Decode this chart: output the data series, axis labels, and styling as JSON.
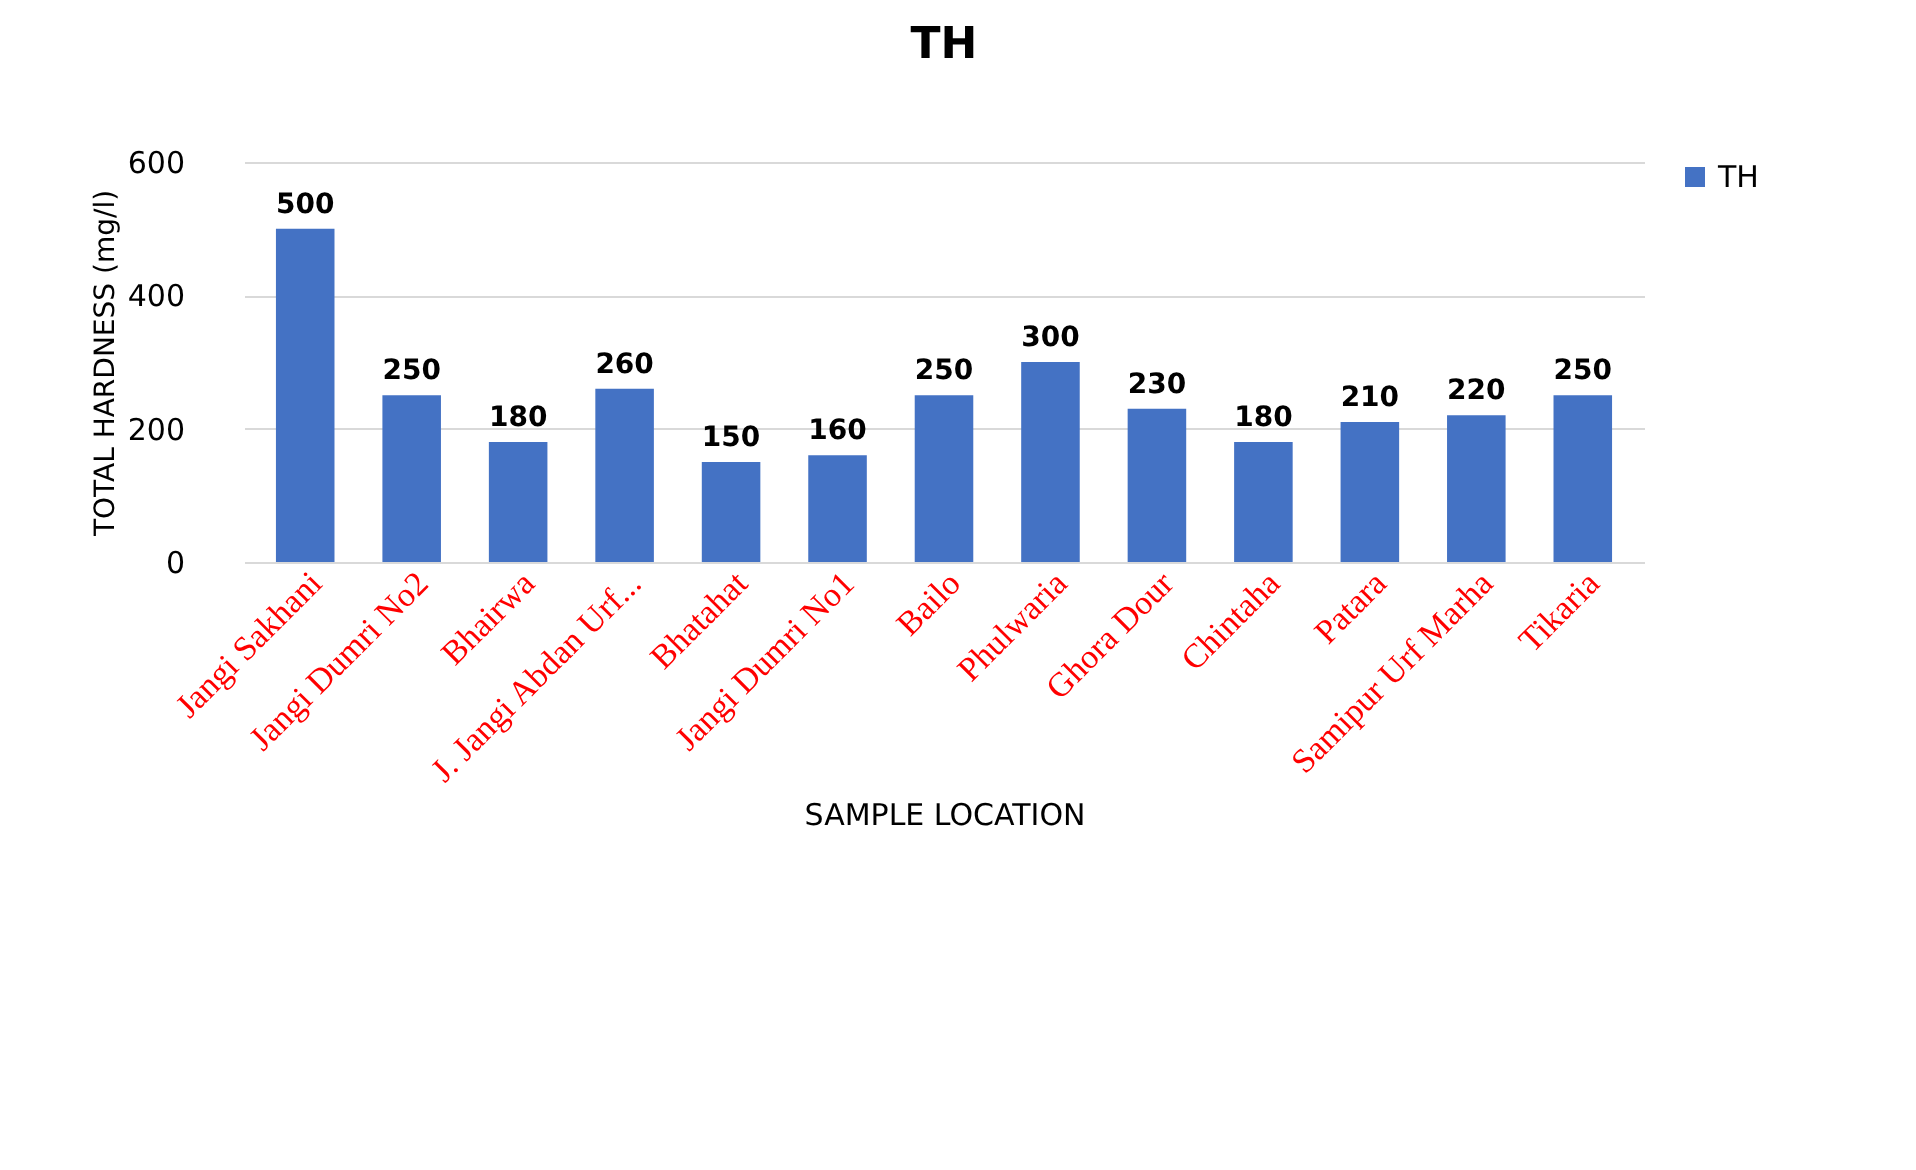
{
  "chart_data": {
    "type": "bar",
    "title": "TH",
    "xlabel": "SAMPLE LOCATION",
    "ylabel": "TOTAL HARDNESS (mg/l)",
    "categories": [
      "Jangi Sakhani",
      "Jangi Dumri No2",
      "Bhairwa",
      "J. Jangi Abdan Urf...",
      "Bhatahat",
      "Jangi Dumri No1",
      "Bailo",
      "Phulwaria",
      "Ghora Dour",
      "Chintaha",
      "Patara",
      "Samipur Urf Marha",
      "Tikaria"
    ],
    "series": [
      {
        "name": "TH",
        "color": "#4472c4",
        "values": [
          500,
          250,
          180,
          260,
          150,
          160,
          250,
          300,
          230,
          180,
          210,
          220,
          250
        ]
      }
    ],
    "ylim": [
      0,
      600
    ],
    "yticks": [
      0,
      200,
      400,
      600
    ],
    "grid": "y",
    "legend": "right",
    "data_labels": true
  }
}
